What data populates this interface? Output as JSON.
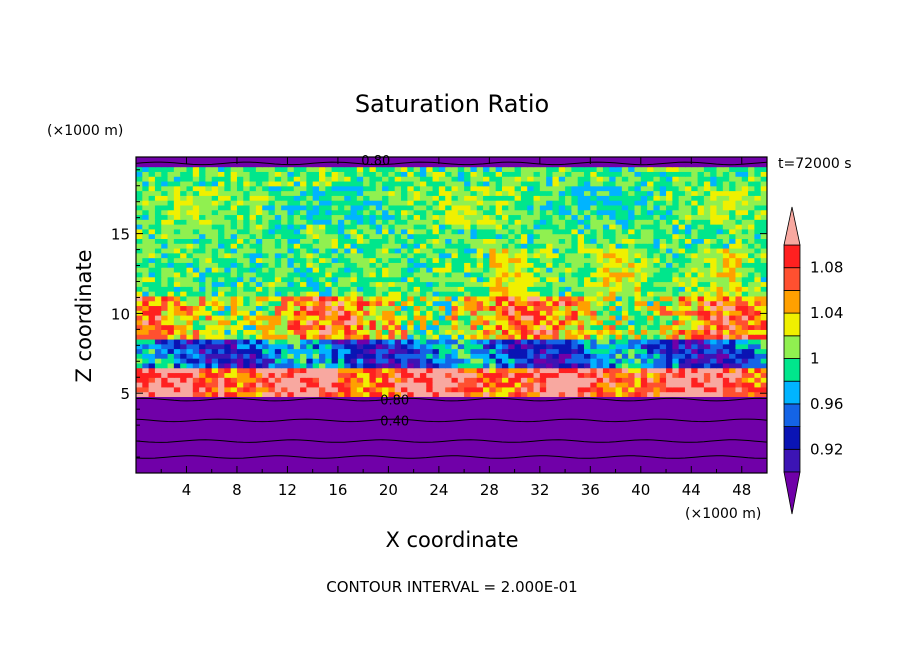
{
  "chart_data": {
    "type": "heatmap",
    "title": "Saturation Ratio",
    "xlabel": "X coordinate",
    "ylabel": "Z coordinate",
    "x_unit": "(×1000 m)",
    "y_unit": "(×1000 m)",
    "time_label": "t=72000 s",
    "footer": "CONTOUR INTERVAL = 2.000E-01",
    "xlim": [
      0,
      50
    ],
    "ylim": [
      0,
      19.8
    ],
    "x_ticks": [
      4,
      8,
      12,
      16,
      20,
      24,
      28,
      32,
      36,
      40,
      44,
      48
    ],
    "y_ticks": [
      5,
      10,
      15
    ],
    "contour_labels": [
      {
        "text": "0.80",
        "x": 16,
        "z": 19.6
      },
      {
        "text": "0.80",
        "x": 17.5,
        "z": 4.6
      },
      {
        "text": "0.40",
        "x": 17.5,
        "z": 3.3
      }
    ],
    "colorbar": {
      "levels": [
        0.9,
        0.92,
        0.94,
        0.96,
        0.98,
        1.0,
        1.02,
        1.04,
        1.06,
        1.08,
        1.1
      ],
      "colors": [
        "#7000a8",
        "#3c14b4",
        "#0a14b4",
        "#1464e6",
        "#00b4ff",
        "#00e68c",
        "#90f050",
        "#f0f000",
        "#ffa000",
        "#ff5030",
        "#ff2020",
        "#f8a8a0"
      ],
      "labels": [
        "0.92",
        "0.96",
        "1",
        "1.04",
        "1.08"
      ],
      "label_values": [
        0.92,
        0.96,
        1.0,
        1.04,
        1.08
      ],
      "extend": "both"
    },
    "field_layers": [
      {
        "z_range": [
          0,
          4.9
        ],
        "value": 0.6,
        "desc": "dry lower layer"
      },
      {
        "z_range": [
          4.9,
          6.5
        ],
        "value": 1.1,
        "desc": "supersaturated band"
      },
      {
        "z_range": [
          6.5,
          8.5
        ],
        "value": 0.94,
        "desc": "subsaturated band"
      },
      {
        "z_range": [
          8.5,
          11
        ],
        "value": 1.05,
        "desc": "supersaturated band"
      },
      {
        "z_range": [
          11,
          19.3
        ],
        "value": 1.0,
        "desc": "near-saturated upper layer"
      },
      {
        "z_range": [
          19.3,
          19.8
        ],
        "value": 0.6,
        "desc": "dry top layer"
      }
    ]
  }
}
